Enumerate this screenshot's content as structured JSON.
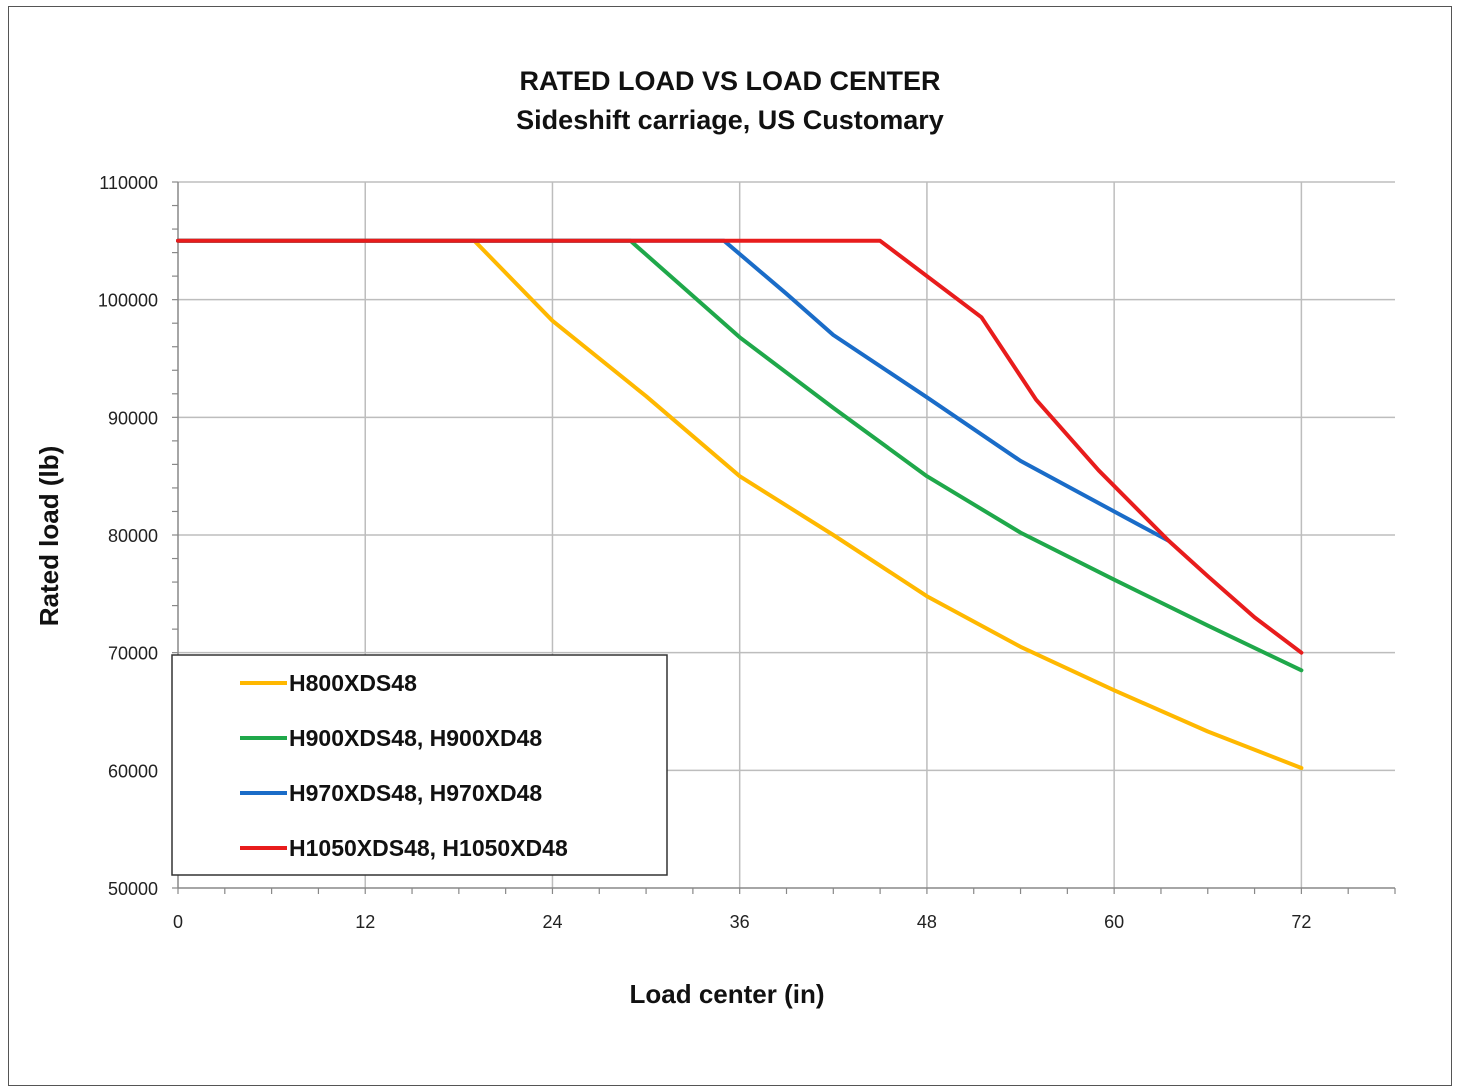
{
  "chart_data": {
    "type": "line",
    "title": "RATED LOAD VS LOAD CENTER",
    "subtitle": "Sideshift carriage, US Customary",
    "xlabel": "Load center (in)",
    "ylabel": "Rated load (lb)",
    "xlim": [
      0,
      78
    ],
    "ylim": [
      50000,
      110000
    ],
    "xticks": [
      0,
      12,
      24,
      36,
      48,
      60,
      72
    ],
    "yticks": [
      50000,
      60000,
      70000,
      80000,
      90000,
      100000,
      110000
    ],
    "ytick_labels": [
      "50000",
      "60000",
      "70000",
      "80000",
      "90000",
      "100000",
      "110000"
    ],
    "xtick_labels": [
      "0",
      "12",
      "24",
      "36",
      "48",
      "60",
      "72"
    ],
    "grid": true,
    "legend_position": "lower-left",
    "series": [
      {
        "name": "H800XDS48",
        "color": "#FFB800",
        "x": [
          0,
          19,
          24,
          30,
          36,
          42,
          48,
          54,
          60,
          66,
          72
        ],
        "y": [
          105000,
          105000,
          98200,
          91800,
          85000,
          80000,
          74800,
          70500,
          66800,
          63300,
          60200
        ]
      },
      {
        "name": "H900XDS48, H900XD48",
        "color": "#1FA84A",
        "x": [
          0,
          29,
          36,
          42,
          48,
          54,
          60,
          66,
          72
        ],
        "y": [
          105000,
          105000,
          96800,
          90800,
          85000,
          80200,
          76200,
          72300,
          68500
        ]
      },
      {
        "name": "H970XDS48, H970XD48",
        "color": "#1A6CC8",
        "x": [
          0,
          35,
          39,
          42,
          48,
          54,
          60,
          63.5
        ],
        "y": [
          105000,
          105000,
          100500,
          97000,
          91700,
          86300,
          82000,
          79500
        ]
      },
      {
        "name": "H1050XDS48, H1050XD48",
        "color": "#E81C1C",
        "x": [
          0,
          45,
          51.5,
          55,
          59,
          63.5,
          66,
          69,
          72
        ],
        "y": [
          105000,
          105000,
          98500,
          91500,
          85500,
          79500,
          76500,
          73000,
          70000
        ]
      }
    ]
  }
}
